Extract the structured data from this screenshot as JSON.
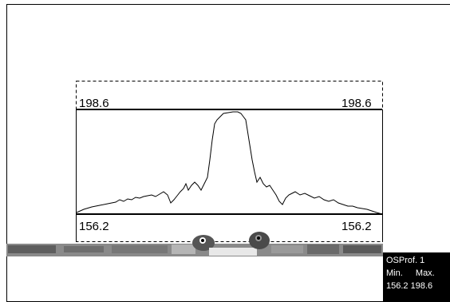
{
  "profile": {
    "max_value_left": "198.6",
    "max_value_right": "198.6",
    "min_value_left": "156.2",
    "min_value_right": "156.2"
  },
  "info_box": {
    "title": "OSProf. 1",
    "min_label": "Min.",
    "max_label": "Max.",
    "min_value": "156.2",
    "max_value": "198.6"
  }
}
